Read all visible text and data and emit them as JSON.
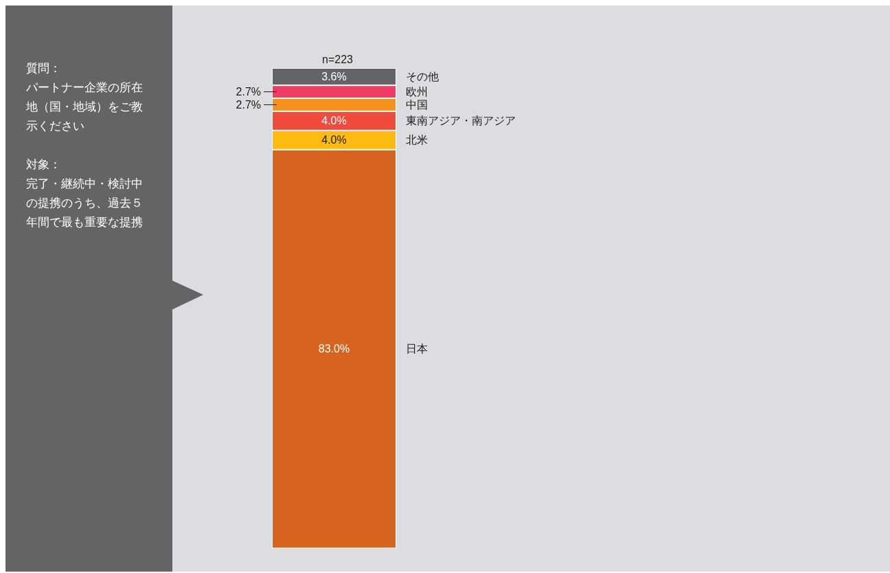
{
  "chart_data": {
    "type": "bar",
    "stacked": true,
    "subtitle": "n=223",
    "categories": [
      null
    ],
    "ylim": [
      0,
      100
    ],
    "tick_labels": false,
    "annotations": [
      "質問：",
      "パートナー企業の所在地（国・地域）をご教示ください",
      "対象：",
      "完了・継続中・検討中の提携のうち、過去５年間で最も重要な提携"
    ],
    "series": [
      {
        "name": "日本",
        "color": "#d6641e",
        "values": [
          83.0
        ],
        "value_labels": [
          "83.0%"
        ]
      },
      {
        "name": "北米",
        "color": "#fdbb12",
        "values": [
          4.0
        ],
        "value_labels": [
          "4.0%"
        ]
      },
      {
        "name": "東南アジア・南アジア",
        "color": "#f04c3e",
        "values": [
          4.0
        ],
        "value_labels": [
          "4.0%"
        ]
      },
      {
        "name": "中国",
        "color": "#f6901e",
        "values": [
          2.7
        ],
        "value_labels": [
          "2.7%"
        ]
      },
      {
        "name": "欧州",
        "color": "#f03d64",
        "values": [
          2.7
        ],
        "value_labels": [
          "2.7%"
        ]
      },
      {
        "name": "その他",
        "color": "#636466",
        "values": [
          3.6
        ],
        "value_labels": [
          "3.6%"
        ]
      }
    ]
  }
}
